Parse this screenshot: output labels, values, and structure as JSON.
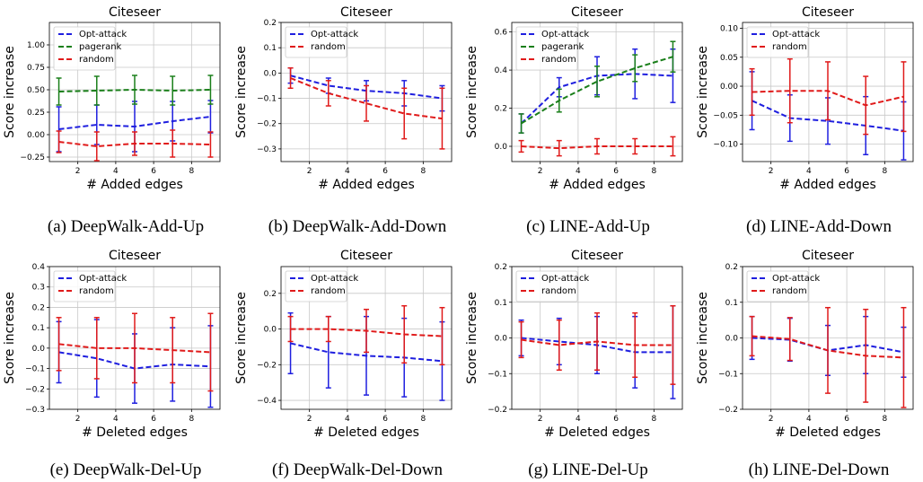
{
  "colors": {
    "Opt-attack": "#1f1fdf",
    "pagerank": "#1a7f1a",
    "random": "#e01a1a",
    "grid": "#c8c8c8"
  },
  "chart_data": [
    {
      "type": "line",
      "title": "Citeseer",
      "xlabel": "# Added edges",
      "ylabel": "Score increase",
      "caption": "(a) DeepWalk-Add-Up",
      "x": [
        1,
        3,
        5,
        7,
        9
      ],
      "xlim": [
        0.5,
        9.5
      ],
      "xticks": [
        2,
        4,
        6,
        8
      ],
      "ylim": [
        -0.3,
        1.25
      ],
      "yticks": [
        -0.25,
        0.0,
        0.25,
        0.5,
        0.75,
        1.0
      ],
      "ytick_labels": [
        "−0.25",
        "0.00",
        "0.25",
        "0.50",
        "0.75",
        "1.00"
      ],
      "legend": "top-left",
      "grid": true,
      "series": [
        {
          "name": "Opt-attack",
          "values": [
            0.06,
            0.11,
            0.09,
            0.15,
            0.2
          ],
          "err": [
            0.25,
            0.22,
            0.28,
            0.22,
            0.18
          ]
        },
        {
          "name": "pagerank",
          "values": [
            0.48,
            0.49,
            0.5,
            0.49,
            0.5
          ],
          "err": [
            0.15,
            0.16,
            0.16,
            0.16,
            0.16
          ]
        },
        {
          "name": "random",
          "values": [
            -0.08,
            -0.13,
            -0.1,
            -0.1,
            -0.11
          ],
          "err": [
            0.12,
            0.16,
            0.13,
            0.15,
            0.14
          ]
        }
      ]
    },
    {
      "type": "line",
      "title": "Citeseer",
      "xlabel": "# Added edges",
      "ylabel": "Score increase",
      "caption": "(b) DeepWalk-Add-Down",
      "x": [
        1,
        3,
        5,
        7,
        9
      ],
      "xlim": [
        0.5,
        9.5
      ],
      "xticks": [
        2,
        4,
        6,
        8
      ],
      "ylim": [
        -0.35,
        0.2
      ],
      "yticks": [
        -0.3,
        -0.2,
        -0.1,
        0.0,
        0.1,
        0.2
      ],
      "ytick_labels": [
        "−0.3",
        "−0.2",
        "−0.1",
        "0.0",
        "0.1",
        "0.2"
      ],
      "legend": "top-left",
      "grid": true,
      "series": [
        {
          "name": "Opt-attack",
          "values": [
            -0.01,
            -0.05,
            -0.07,
            -0.08,
            -0.1
          ],
          "err": [
            0.03,
            0.03,
            0.04,
            0.05,
            0.05
          ]
        },
        {
          "name": "random",
          "values": [
            -0.02,
            -0.08,
            -0.12,
            -0.16,
            -0.18
          ],
          "err": [
            0.04,
            0.05,
            0.07,
            0.1,
            0.12
          ]
        }
      ]
    },
    {
      "type": "line",
      "title": "Citeseer",
      "xlabel": "# Added edges",
      "ylabel": "Score increase",
      "caption": "(c) LINE-Add-Up",
      "x": [
        1,
        3,
        5,
        7,
        9
      ],
      "xlim": [
        0.5,
        9.5
      ],
      "xticks": [
        2,
        4,
        6,
        8
      ],
      "ylim": [
        -0.08,
        0.65
      ],
      "yticks": [
        0.0,
        0.2,
        0.4,
        0.6
      ],
      "ytick_labels": [
        "0.0",
        "0.2",
        "0.4",
        "0.6"
      ],
      "legend": "top-left",
      "grid": true,
      "series": [
        {
          "name": "Opt-attack",
          "values": [
            0.12,
            0.31,
            0.37,
            0.38,
            0.37
          ],
          "err": [
            0.05,
            0.05,
            0.1,
            0.13,
            0.14
          ]
        },
        {
          "name": "pagerank",
          "values": [
            0.12,
            0.24,
            0.34,
            0.41,
            0.47
          ],
          "err": [
            0.05,
            0.06,
            0.08,
            0.07,
            0.08
          ]
        },
        {
          "name": "random",
          "values": [
            0.0,
            -0.01,
            0.0,
            0.0,
            0.0
          ],
          "err": [
            0.03,
            0.04,
            0.04,
            0.04,
            0.05
          ]
        }
      ]
    },
    {
      "type": "line",
      "title": "Citeseer",
      "xlabel": "# Added edges",
      "ylabel": "Score increase",
      "caption": "(d) LINE-Add-Down",
      "x": [
        1,
        3,
        5,
        7,
        9
      ],
      "xlim": [
        0.5,
        9.5
      ],
      "xticks": [
        2,
        4,
        6,
        8
      ],
      "ylim": [
        -0.13,
        0.11
      ],
      "yticks": [
        -0.1,
        -0.05,
        0.0,
        0.05,
        0.1
      ],
      "ytick_labels": [
        "−0.10",
        "−0.05",
        "0.00",
        "0.05",
        "0.10"
      ],
      "legend": "top-left",
      "grid": true,
      "series": [
        {
          "name": "Opt-attack",
          "values": [
            -0.025,
            -0.055,
            -0.06,
            -0.068,
            -0.077
          ],
          "err": [
            0.05,
            0.04,
            0.04,
            0.05,
            0.05
          ]
        },
        {
          "name": "random",
          "values": [
            -0.01,
            -0.008,
            -0.008,
            -0.033,
            -0.018
          ],
          "err": [
            0.04,
            0.055,
            0.05,
            0.05,
            0.06
          ]
        }
      ]
    },
    {
      "type": "line",
      "title": "Citeseer",
      "xlabel": "# Deleted edges",
      "ylabel": "Score increase",
      "caption": "(e) DeepWalk-Del-Up",
      "x": [
        1,
        3,
        5,
        7,
        9
      ],
      "xlim": [
        0.5,
        9.5
      ],
      "xticks": [
        2,
        4,
        6,
        8
      ],
      "ylim": [
        -0.3,
        0.4
      ],
      "yticks": [
        -0.3,
        -0.2,
        -0.1,
        0.0,
        0.1,
        0.2,
        0.3,
        0.4
      ],
      "ytick_labels": [
        "−0.3",
        "−0.2",
        "−0.1",
        "0.0",
        "0.1",
        "0.2",
        "0.3",
        "0.4"
      ],
      "legend": "top-left",
      "grid": true,
      "series": [
        {
          "name": "Opt-attack",
          "values": [
            -0.02,
            -0.05,
            -0.1,
            -0.08,
            -0.09
          ],
          "err": [
            0.15,
            0.19,
            0.17,
            0.18,
            0.2
          ]
        },
        {
          "name": "random",
          "values": [
            0.02,
            0.0,
            0.0,
            -0.01,
            -0.02
          ],
          "err": [
            0.13,
            0.15,
            0.17,
            0.16,
            0.19
          ]
        }
      ]
    },
    {
      "type": "line",
      "title": "Citeseer",
      "xlabel": "# Deleted edges",
      "ylabel": "Score increase",
      "caption": "(f) DeepWalk-Del-Down",
      "x": [
        1,
        3,
        5,
        7,
        9
      ],
      "xlim": [
        0.5,
        9.5
      ],
      "xticks": [
        2,
        4,
        6,
        8
      ],
      "ylim": [
        -0.45,
        0.35
      ],
      "yticks": [
        -0.4,
        -0.2,
        0.0,
        0.2
      ],
      "ytick_labels": [
        "−0.4",
        "−0.2",
        "0.0",
        "0.2"
      ],
      "legend": "top-left",
      "grid": true,
      "series": [
        {
          "name": "Opt-attack",
          "values": [
            -0.08,
            -0.13,
            -0.15,
            -0.16,
            -0.18
          ],
          "err": [
            0.17,
            0.2,
            0.22,
            0.22,
            0.22
          ]
        },
        {
          "name": "random",
          "values": [
            0.0,
            0.0,
            -0.01,
            -0.03,
            -0.04
          ],
          "err": [
            0.07,
            0.07,
            0.12,
            0.16,
            0.16
          ]
        }
      ]
    },
    {
      "type": "line",
      "title": "Citeseer",
      "xlabel": "# Deleted edges",
      "ylabel": "Score increase",
      "caption": "(g) LINE-Del-Up",
      "x": [
        1,
        3,
        5,
        7,
        9
      ],
      "xlim": [
        0.5,
        9.5
      ],
      "xticks": [
        2,
        4,
        6,
        8
      ],
      "ylim": [
        -0.2,
        0.2
      ],
      "yticks": [
        -0.2,
        -0.1,
        0.0,
        0.1,
        0.2
      ],
      "ytick_labels": [
        "−0.2",
        "−0.1",
        "0.0",
        "0.1",
        "0.2"
      ],
      "legend": "top-left",
      "grid": true,
      "series": [
        {
          "name": "Opt-attack",
          "values": [
            0.0,
            -0.01,
            -0.02,
            -0.04,
            -0.04
          ],
          "err": [
            0.05,
            0.065,
            0.08,
            0.1,
            0.13
          ]
        },
        {
          "name": "random",
          "values": [
            -0.005,
            -0.02,
            -0.01,
            -0.02,
            -0.02
          ],
          "err": [
            0.05,
            0.07,
            0.08,
            0.09,
            0.11
          ]
        }
      ]
    },
    {
      "type": "line",
      "title": "Citeseer",
      "xlabel": "# Deleted edges",
      "ylabel": "Score increase",
      "caption": "(h) LINE-Del-Down",
      "x": [
        1,
        3,
        5,
        7,
        9
      ],
      "xlim": [
        0.5,
        9.5
      ],
      "xticks": [
        2,
        4,
        6,
        8
      ],
      "ylim": [
        -0.2,
        0.2
      ],
      "yticks": [
        -0.2,
        -0.1,
        0.0,
        0.1,
        0.2
      ],
      "ytick_labels": [
        "−0.2",
        "−0.1",
        "0.0",
        "0.1",
        "0.2"
      ],
      "legend": "top-left",
      "grid": true,
      "series": [
        {
          "name": "Opt-attack",
          "values": [
            0.0,
            -0.005,
            -0.035,
            -0.02,
            -0.04
          ],
          "err": [
            0.06,
            0.06,
            0.07,
            0.08,
            0.07
          ]
        },
        {
          "name": "random",
          "values": [
            0.005,
            -0.003,
            -0.035,
            -0.05,
            -0.055
          ],
          "err": [
            0.055,
            0.06,
            0.12,
            0.13,
            0.14
          ]
        }
      ]
    }
  ]
}
